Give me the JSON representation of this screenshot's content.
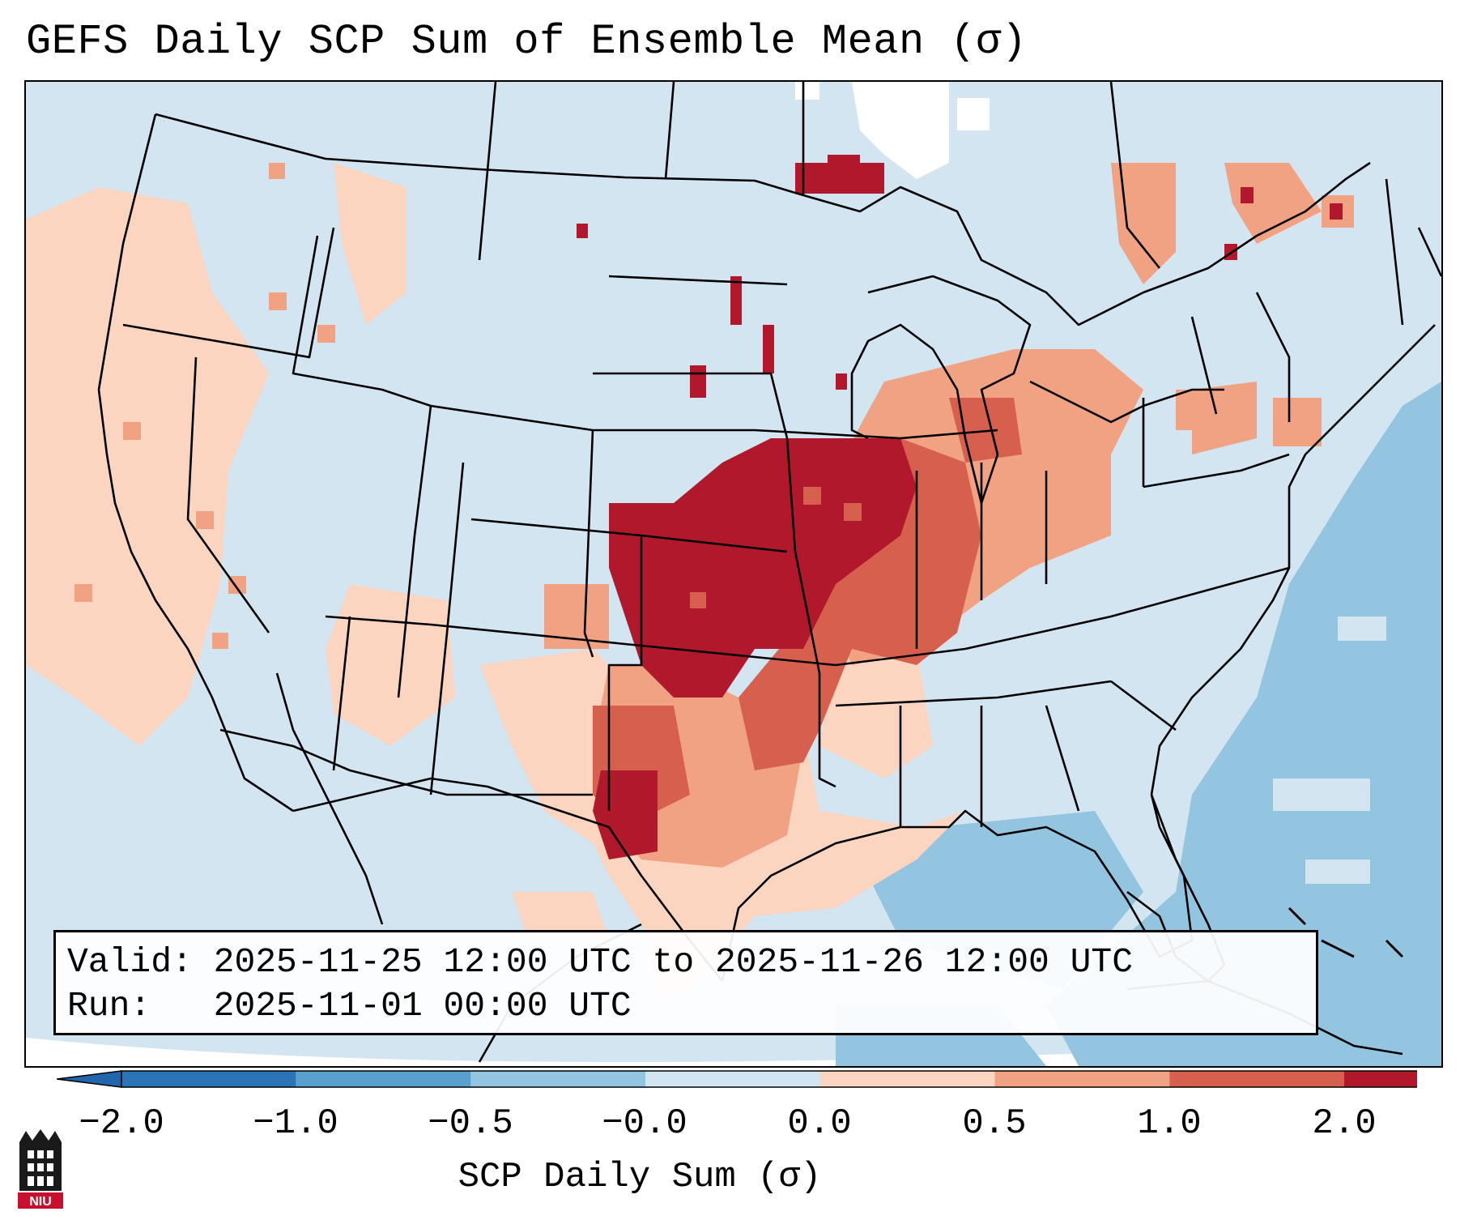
{
  "title": "GEFS Daily SCP Sum of Ensemble Mean (σ)",
  "info": {
    "valid_label": "Valid:",
    "valid_value": "2025-11-25 12:00 UTC to 2025-11-26 12:00 UTC",
    "run_label": "Run:  ",
    "run_value": "2025-11-01 00:00 UTC"
  },
  "colorbar": {
    "label": "SCP Daily Sum (σ)",
    "ticks": [
      "−2.0",
      "−1.0",
      "−0.5",
      "−0.0",
      "0.0",
      "0.5",
      "1.0",
      "2.0"
    ],
    "colors": [
      "#2b74b7",
      "#5aa0cf",
      "#93c5e0",
      "#d2e5f1",
      "#fbd5c0",
      "#f0a283",
      "#d6604d",
      "#b2182b"
    ],
    "under_color": "#2166ac",
    "over_color": "#b2182b"
  },
  "map": {
    "background_color": "#d2e5f1",
    "region": "CONUS",
    "anomaly_areas": [
      {
        "name": "plains-core",
        "level": "2.0",
        "color": "#b2182b"
      },
      {
        "name": "midwest",
        "level": "1.0",
        "color": "#d6604d"
      },
      {
        "name": "ohio-valley",
        "level": "0.5",
        "color": "#f0a283"
      },
      {
        "name": "texas-south",
        "level": "0.0",
        "color": "#fbd5c0"
      },
      {
        "name": "west-coast",
        "level": "0.0",
        "color": "#fbd5c0"
      },
      {
        "name": "atlantic",
        "level": "-0.5",
        "color": "#93c5e0"
      },
      {
        "name": "gulf",
        "level": "-0.5",
        "color": "#93c5e0"
      }
    ]
  },
  "logo": {
    "text": "NIU"
  }
}
